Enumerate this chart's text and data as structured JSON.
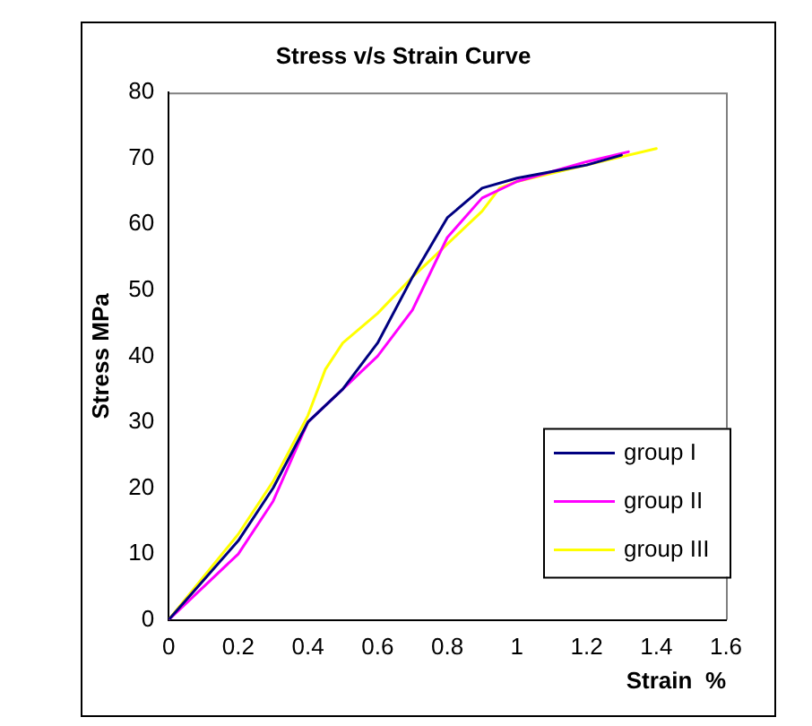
{
  "chart_data": {
    "type": "line",
    "title": "Stress v/s Strain Curve",
    "xlabel": "Strain  %",
    "ylabel": "Stress MPa",
    "xlim": [
      0,
      1.6
    ],
    "xticks": [
      0,
      0.2,
      0.4,
      0.6,
      0.8,
      1,
      1.2,
      1.4,
      1.6
    ],
    "ylim": [
      0,
      80
    ],
    "yticks": [
      0,
      10,
      20,
      30,
      40,
      50,
      60,
      70,
      80
    ],
    "grid": false,
    "legend": "bottom right",
    "marker": "none",
    "line_style": "solid",
    "series": [
      {
        "name": "group I",
        "color": "#000080",
        "x": [
          0,
          0.1,
          0.2,
          0.3,
          0.35,
          0.4,
          0.5,
          0.6,
          0.7,
          0.8,
          0.9,
          1.0,
          1.1,
          1.2,
          1.3
        ],
        "values": [
          0,
          6,
          12,
          20,
          25,
          30,
          35,
          42,
          52,
          61,
          65.5,
          67,
          68,
          69,
          70.5
        ]
      },
      {
        "name": "group II",
        "color": "#ff00ff",
        "x": [
          0,
          0.1,
          0.2,
          0.3,
          0.35,
          0.4,
          0.5,
          0.6,
          0.7,
          0.8,
          0.9,
          1.0,
          1.1,
          1.2,
          1.32
        ],
        "values": [
          0,
          5,
          10,
          18,
          24,
          30,
          35,
          40,
          47,
          58,
          64,
          66.5,
          68,
          69.5,
          71
        ]
      },
      {
        "name": "group III",
        "color": "#ffff00",
        "x": [
          0,
          0.1,
          0.2,
          0.3,
          0.4,
          0.45,
          0.5,
          0.6,
          0.7,
          0.8,
          0.9,
          0.95,
          1.0,
          1.2,
          1.4
        ],
        "values": [
          0,
          6.5,
          13,
          21,
          31,
          38,
          42,
          46.5,
          52,
          57,
          62,
          65.5,
          66.5,
          69,
          71.5
        ]
      }
    ]
  }
}
